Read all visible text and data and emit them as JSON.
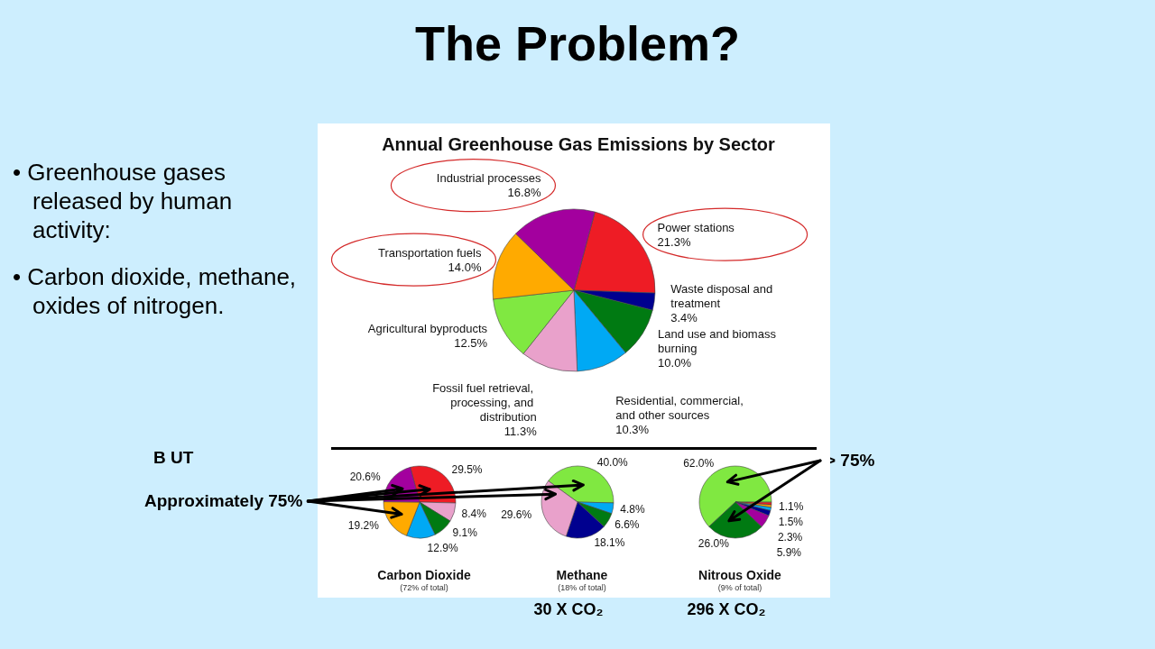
{
  "chart_data": [
    {
      "type": "other",
      "title": "The Problem?",
      "annotations": [
        "• Greenhouse gases released by human activity:",
        "• Carbon dioxide, methane, oxides of nitrogen.",
        "B UT",
        "Approximately 75%",
        "> 75%",
        "30 X CO₂",
        "296 X CO₂"
      ]
    },
    {
      "type": "pie",
      "title": "Annual Greenhouse Gas Emissions by Sector",
      "categories": [
        "Power stations",
        "Waste disposal and treatment",
        "Land use and biomass burning",
        "Residential, commercial, and other sources",
        "Fossil fuel retrieval, processing, and distribution",
        "Agricultural byproducts",
        "Transportation fuels",
        "Industrial processes"
      ],
      "values": [
        21.3,
        3.4,
        10.0,
        10.3,
        11.3,
        12.5,
        14.0,
        16.8
      ],
      "value_labels": [
        "21.3%",
        "3.4%",
        "10.0%",
        "10.3%",
        "11.3%",
        "12.5%",
        "14.0%",
        "16.8%"
      ],
      "colors": [
        "#ee1c25",
        "#00008f",
        "#007a12",
        "#00a9f4",
        "#e9a1cb",
        "#80e841",
        "#ffaa00",
        "#a3009e"
      ]
    },
    {
      "type": "pie",
      "title": "Carbon Dioxide",
      "subtitle": "(72% of total)",
      "categories": [
        null,
        null,
        null,
        null,
        null,
        null
      ],
      "values": [
        29.5,
        8.4,
        9.1,
        12.9,
        19.2,
        20.6
      ],
      "value_labels": [
        "29.5%",
        "8.4%",
        "9.1%",
        "12.9%",
        "19.2%",
        "20.6%"
      ],
      "colors": [
        "#ee1c25",
        "#e9a1cb",
        "#007a12",
        "#00a9f4",
        "#ffaa00",
        "#a3009e"
      ]
    },
    {
      "type": "pie",
      "title": "Methane",
      "subtitle": "(18% of total)",
      "categories": [
        null,
        null,
        null,
        null,
        null
      ],
      "values": [
        40.0,
        4.8,
        6.6,
        18.1,
        29.6
      ],
      "value_labels": [
        "40.0%",
        "4.8%",
        "6.6%",
        "18.1%",
        "29.6%"
      ],
      "colors": [
        "#80e841",
        "#00a9f4",
        "#007a12",
        "#00008f",
        "#e9a1cb"
      ]
    },
    {
      "type": "pie",
      "title": "Nitrous Oxide",
      "subtitle": "(9% of total)",
      "categories": [
        null,
        null,
        null,
        null,
        null,
        null,
        null
      ],
      "values": [
        62.0,
        1.2,
        1.1,
        1.5,
        2.3,
        5.9,
        26.0
      ],
      "value_labels": [
        "62.0%",
        null,
        "1.1%",
        "1.5%",
        "2.3%",
        "5.9%",
        "26.0%"
      ],
      "colors": [
        "#80e841",
        "#ee1c25",
        "#ffaa00",
        "#00a9f4",
        "#00008f",
        "#a3009e",
        "#007a12"
      ]
    }
  ]
}
